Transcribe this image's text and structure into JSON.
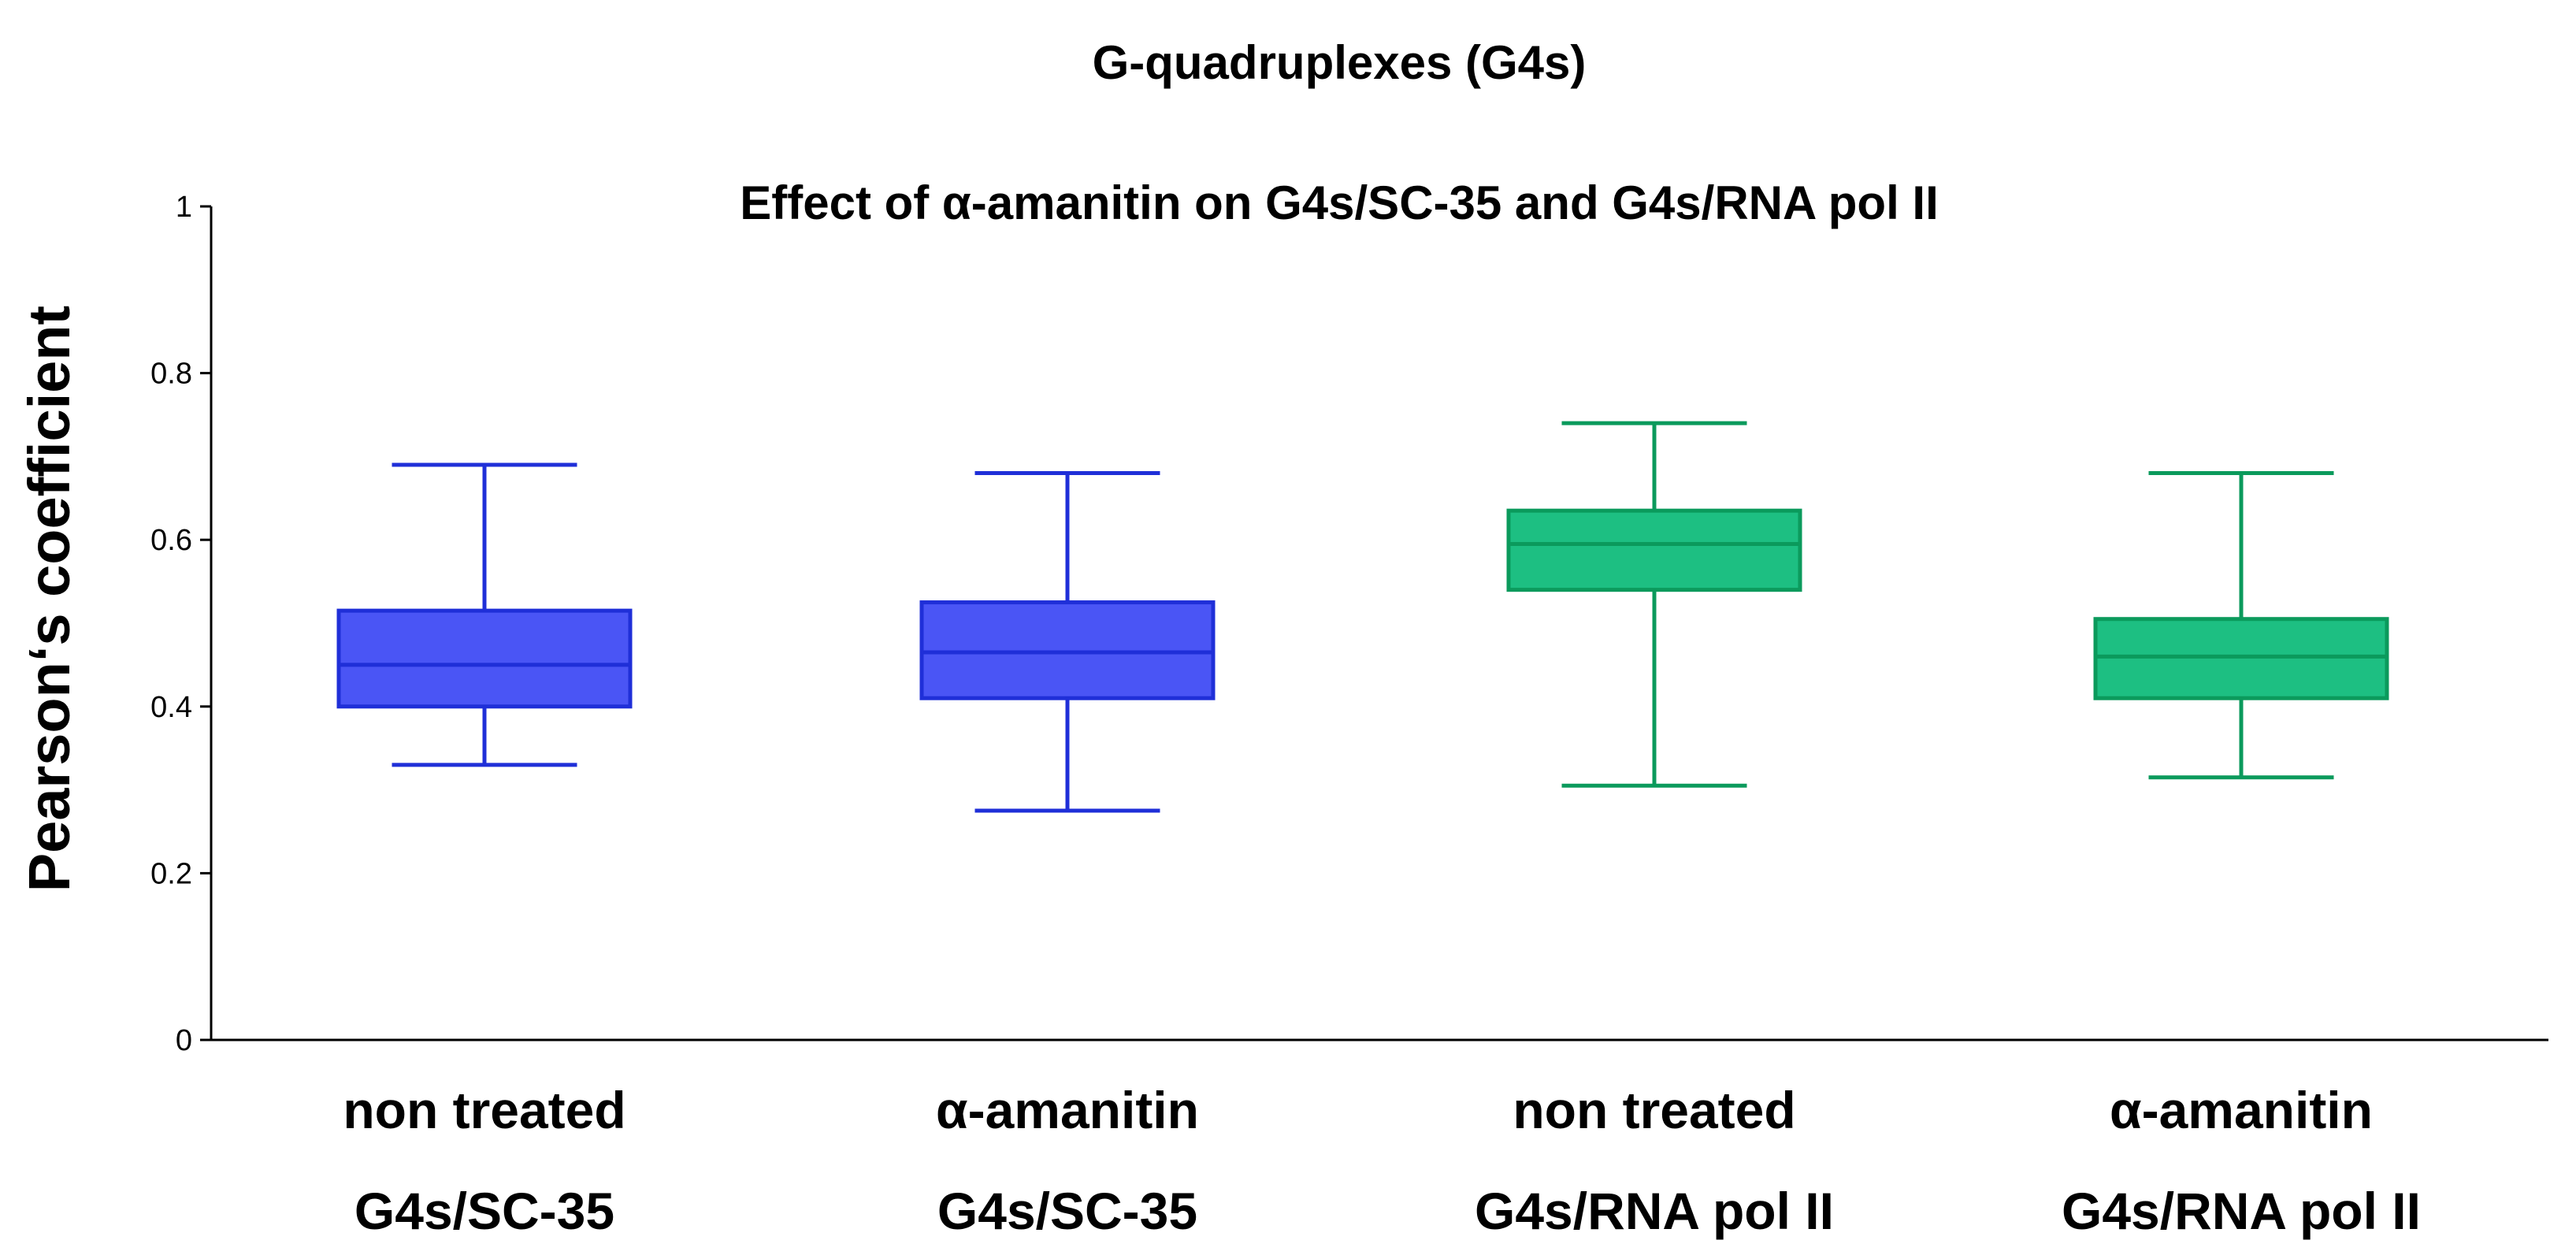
{
  "chart_data": {
    "type": "boxplot",
    "title": "G-quadruplexes (G4s)",
    "subtitle": "Effect of α-amanitin on G4s/SC-35  and G4s/RNA pol II",
    "xlabel": "",
    "ylabel": "Pearson‘s coefficient",
    "ylim": [
      0,
      1
    ],
    "yticks": [
      0,
      0.2,
      0.4,
      0.6,
      0.8,
      1
    ],
    "ytick_labels": [
      "0",
      "0.2",
      "0.4",
      "0.6",
      "0.8",
      "1"
    ],
    "grid": false,
    "categories": [
      {
        "line1": "non treated",
        "line2": "G4s/SC-35"
      },
      {
        "line1": "α-amanitin",
        "line2": "G4s/SC-35"
      },
      {
        "line1": "non treated",
        "line2": "G4s/RNA pol II"
      },
      {
        "line1": "α-amanitin",
        "line2": "G4s/RNA pol II"
      }
    ],
    "boxes": [
      {
        "min": 0.33,
        "q1": 0.4,
        "median": 0.45,
        "q3": 0.515,
        "max": 0.69,
        "fill": "#4a55f5",
        "stroke": "#1f2fd8"
      },
      {
        "min": 0.275,
        "q1": 0.41,
        "median": 0.465,
        "q3": 0.525,
        "max": 0.68,
        "fill": "#4a55f5",
        "stroke": "#1f2fd8"
      },
      {
        "min": 0.305,
        "q1": 0.54,
        "median": 0.595,
        "q3": 0.635,
        "max": 0.74,
        "fill": "#1dbf82",
        "stroke": "#0b9a5c"
      },
      {
        "min": 0.315,
        "q1": 0.41,
        "median": 0.46,
        "q3": 0.505,
        "max": 0.68,
        "fill": "#1dbf82",
        "stroke": "#0b9a5c"
      }
    ]
  }
}
